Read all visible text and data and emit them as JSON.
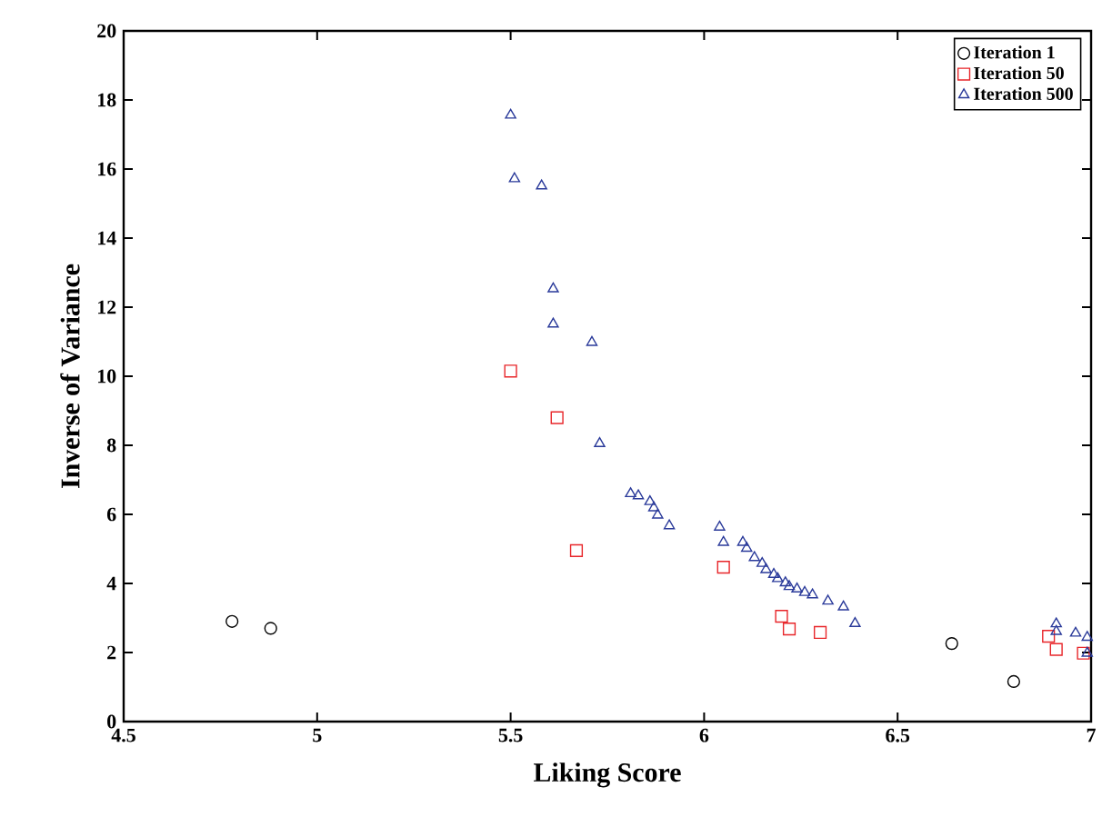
{
  "chart_data": {
    "type": "scatter",
    "xlabel": "Liking Score",
    "ylabel": "Inverse of Variance",
    "xlim": [
      4.5,
      7
    ],
    "ylim": [
      0,
      20
    ],
    "xticks": [
      4.5,
      5,
      5.5,
      6,
      6.5,
      7
    ],
    "yticks": [
      0,
      2,
      4,
      6,
      8,
      10,
      12,
      14,
      16,
      18,
      20
    ],
    "grid": false,
    "legend": "top right",
    "series": [
      {
        "name": "Iteration 1",
        "color": "#000000",
        "marker": "circle",
        "x": [
          4.78,
          4.88,
          6.64,
          6.8
        ],
        "values": [
          2.9,
          2.7,
          2.26,
          1.16
        ]
      },
      {
        "name": "Iteration 50",
        "color": "#e8262a",
        "marker": "square",
        "x": [
          5.5,
          5.62,
          5.67,
          6.05,
          6.2,
          6.22,
          6.3,
          6.89,
          6.91,
          6.98
        ],
        "values": [
          10.15,
          8.8,
          4.95,
          4.47,
          3.05,
          2.68,
          2.58,
          2.47,
          2.09,
          1.98
        ]
      },
      {
        "name": "Iteration 500",
        "color": "#2a3a9a",
        "marker": "triangle",
        "x": [
          5.5,
          5.51,
          5.58,
          5.61,
          5.61,
          5.71,
          5.73,
          5.81,
          5.83,
          5.86,
          5.87,
          5.88,
          5.91,
          6.04,
          6.05,
          6.1,
          6.11,
          6.13,
          6.15,
          6.16,
          6.18,
          6.19,
          6.21,
          6.22,
          6.24,
          6.26,
          6.28,
          6.32,
          6.36,
          6.39,
          6.91,
          6.91,
          6.96,
          6.99,
          6.99
        ],
        "values": [
          17.56,
          15.72,
          15.51,
          12.53,
          11.51,
          10.98,
          8.05,
          6.6,
          6.54,
          6.37,
          6.19,
          5.98,
          5.67,
          5.63,
          5.19,
          5.19,
          5.02,
          4.75,
          4.58,
          4.4,
          4.26,
          4.14,
          4.02,
          3.91,
          3.84,
          3.74,
          3.67,
          3.49,
          3.32,
          2.84,
          2.83,
          2.61,
          2.56,
          2.44,
          1.98
        ]
      }
    ]
  }
}
